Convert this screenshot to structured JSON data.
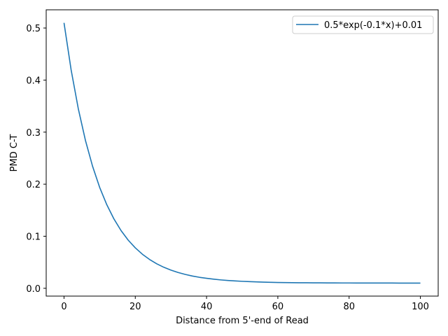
{
  "chart_data": {
    "type": "line",
    "title": "",
    "xlabel": "Distance from 5'-end of Read",
    "ylabel": "PMD C-T",
    "xlim": [
      -5,
      105
    ],
    "ylim": [
      -0.015,
      0.535
    ],
    "xticks": [
      0,
      20,
      40,
      60,
      80,
      100
    ],
    "xtick_labels": [
      "0",
      "20",
      "40",
      "60",
      "80",
      "100"
    ],
    "yticks": [
      0.0,
      0.1,
      0.2,
      0.3,
      0.4,
      0.5
    ],
    "ytick_labels": [
      "0.0",
      "0.1",
      "0.2",
      "0.3",
      "0.4",
      "0.5"
    ],
    "grid": false,
    "legend_position": "top-right",
    "series": [
      {
        "name": "0.5*exp(-0.1*x)+0.01",
        "color": "#1f77b4",
        "x": [
          0,
          2,
          4,
          6,
          8,
          10,
          12,
          14,
          16,
          18,
          20,
          22,
          24,
          26,
          28,
          30,
          32,
          34,
          36,
          38,
          40,
          42,
          44,
          46,
          48,
          50,
          52,
          54,
          56,
          58,
          60,
          62,
          64,
          66,
          68,
          70,
          72,
          74,
          76,
          78,
          80,
          82,
          84,
          86,
          88,
          90,
          92,
          94,
          96,
          98,
          100
        ],
        "y": [
          0.51,
          0.4194,
          0.3452,
          0.2844,
          0.2347,
          0.1939,
          0.1606,
          0.1333,
          0.1109,
          0.0926,
          0.0777,
          0.0654,
          0.0554,
          0.0471,
          0.0404,
          0.0349,
          0.0304,
          0.0267,
          0.0236,
          0.0211,
          0.0192,
          0.0175,
          0.0161,
          0.015,
          0.0141,
          0.0134,
          0.0128,
          0.0123,
          0.0118,
          0.0115,
          0.0112,
          0.011,
          0.0108,
          0.0107,
          0.0106,
          0.0105,
          0.0104,
          0.0103,
          0.0103,
          0.0102,
          0.0102,
          0.0101,
          0.0101,
          0.0101,
          0.0101,
          0.0101,
          0.0101,
          0.01,
          0.01,
          0.01,
          0.01
        ]
      }
    ]
  }
}
